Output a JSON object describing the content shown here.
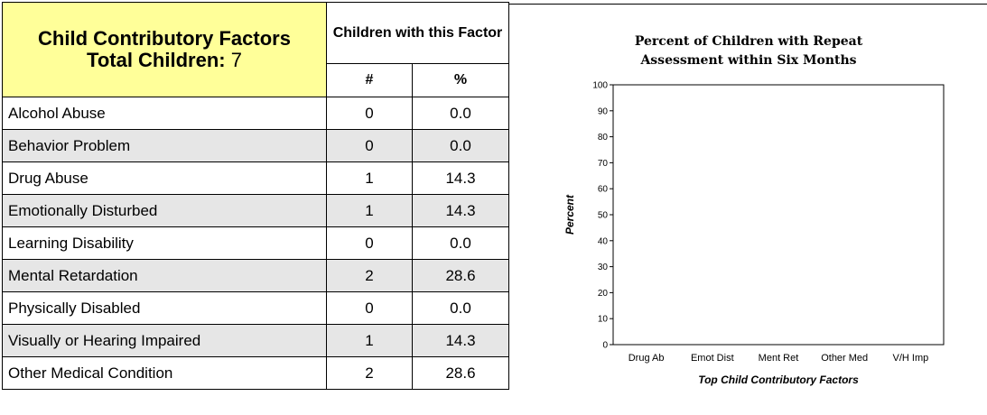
{
  "table": {
    "header": {
      "title": "Child Contributory Factors",
      "total_label": "Total Children:",
      "total_value": "7",
      "group": "Children with this Factor",
      "col_num": "#",
      "col_pct": "%"
    },
    "rows": [
      {
        "label": "Alcohol Abuse",
        "num": "0",
        "pct": "0.0"
      },
      {
        "label": "Behavior Problem",
        "num": "0",
        "pct": "0.0"
      },
      {
        "label": "Drug Abuse",
        "num": "1",
        "pct": "14.3"
      },
      {
        "label": "Emotionally Disturbed",
        "num": "1",
        "pct": "14.3"
      },
      {
        "label": "Learning Disability",
        "num": "0",
        "pct": "0.0"
      },
      {
        "label": "Mental Retardation",
        "num": "2",
        "pct": "28.6"
      },
      {
        "label": "Physically Disabled",
        "num": "0",
        "pct": "0.0"
      },
      {
        "label": "Visually or Hearing Impaired",
        "num": "1",
        "pct": "14.3"
      },
      {
        "label": "Other Medical Condition",
        "num": "2",
        "pct": "28.6"
      }
    ],
    "shade_color": "#e6e6e6",
    "header_color": "#ffff99"
  },
  "chart_data": {
    "type": "bar",
    "title_lines": [
      "Percent of Children with Repeat",
      "Assessment within Six Months"
    ],
    "xlabel": "Top Child Contributory Factors",
    "ylabel": "Percent",
    "ylim": [
      0,
      100
    ],
    "yticks": [
      0,
      10,
      20,
      30,
      40,
      50,
      60,
      70,
      80,
      90,
      100
    ],
    "categories": [
      "Drug Ab",
      "Emot Dist",
      "Ment Ret",
      "Other Med",
      "V/H Imp"
    ],
    "values": [
      0,
      0,
      0,
      0,
      0
    ],
    "grid": false
  }
}
